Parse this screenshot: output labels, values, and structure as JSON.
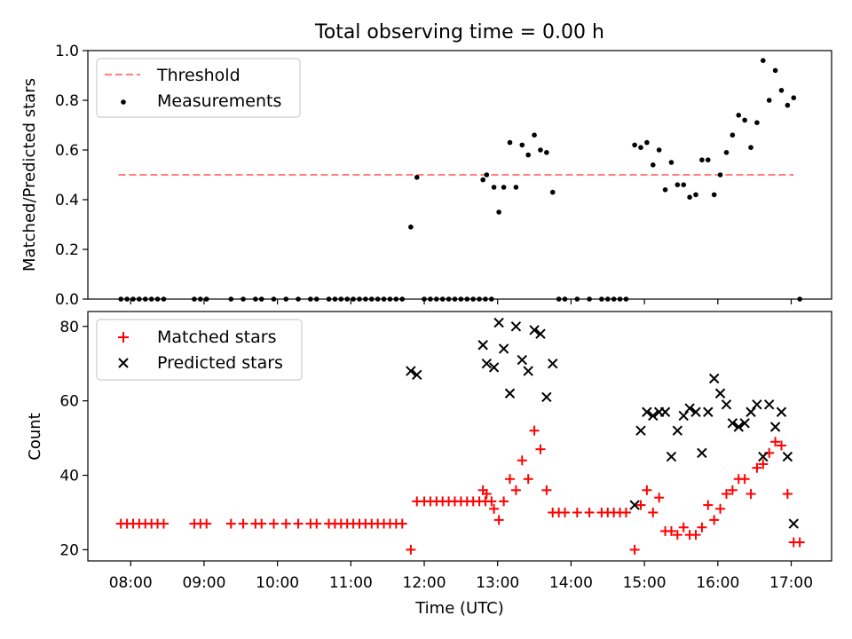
{
  "figure": {
    "title": "Total observing time = 0.00 h",
    "xlabel": "Time (UTC)",
    "xticks": [
      "08:00",
      "09:00",
      "10:00",
      "11:00",
      "12:00",
      "13:00",
      "14:00",
      "15:00",
      "16:00",
      "17:00"
    ]
  },
  "colors": {
    "threshold": "#ff7f7f",
    "measurements": "#000000",
    "matched": "#ff0000",
    "predicted": "#000000"
  },
  "chart_data": [
    {
      "type": "scatter",
      "ylabel": "Matched/Predicted stars",
      "xlim": [
        "07:25",
        "17:33"
      ],
      "ylim": [
        0,
        1
      ],
      "yticks": [
        "0.0",
        "0.2",
        "0.4",
        "0.6",
        "0.8",
        "1.0"
      ],
      "grid": false,
      "legend": {
        "position": "upper-left",
        "entries": [
          {
            "label": "Threshold",
            "marker": "dashed-line"
          },
          {
            "label": "Measurements",
            "marker": "dot"
          }
        ]
      },
      "threshold": {
        "value": 0.5,
        "x_start": "07:50",
        "x_end": "17:02"
      },
      "series": [
        {
          "name": "Measurements",
          "points": [
            [
              "07:52",
              0
            ],
            [
              "07:57",
              0
            ],
            [
              "08:02",
              0
            ],
            [
              "08:07",
              0
            ],
            [
              "08:12",
              0
            ],
            [
              "08:17",
              0
            ],
            [
              "08:22",
              0
            ],
            [
              "08:27",
              0
            ],
            [
              "08:52",
              0
            ],
            [
              "08:57",
              0
            ],
            [
              "09:02",
              0
            ],
            [
              "09:22",
              0
            ],
            [
              "09:32",
              0
            ],
            [
              "09:42",
              0
            ],
            [
              "09:47",
              0
            ],
            [
              "09:57",
              0
            ],
            [
              "10:07",
              0
            ],
            [
              "10:17",
              0
            ],
            [
              "10:27",
              0
            ],
            [
              "10:32",
              0
            ],
            [
              "10:42",
              0
            ],
            [
              "10:47",
              0
            ],
            [
              "10:52",
              0
            ],
            [
              "10:57",
              0
            ],
            [
              "11:02",
              0
            ],
            [
              "11:07",
              0
            ],
            [
              "11:12",
              0
            ],
            [
              "11:17",
              0
            ],
            [
              "11:22",
              0
            ],
            [
              "11:27",
              0
            ],
            [
              "11:32",
              0
            ],
            [
              "11:37",
              0
            ],
            [
              "11:42",
              0
            ],
            [
              "11:49",
              0.29
            ],
            [
              "11:54",
              0.49
            ],
            [
              "12:00",
              0
            ],
            [
              "12:05",
              0
            ],
            [
              "12:10",
              0
            ],
            [
              "12:15",
              0
            ],
            [
              "12:20",
              0
            ],
            [
              "12:25",
              0
            ],
            [
              "12:30",
              0
            ],
            [
              "12:35",
              0
            ],
            [
              "12:40",
              0
            ],
            [
              "12:45",
              0
            ],
            [
              "12:50",
              0
            ],
            [
              "12:55",
              0
            ],
            [
              "12:48",
              0.48
            ],
            [
              "12:51",
              0.5
            ],
            [
              "12:57",
              0.45
            ],
            [
              "13:01",
              0.35
            ],
            [
              "13:05",
              0.45
            ],
            [
              "13:10",
              0.63
            ],
            [
              "13:15",
              0.45
            ],
            [
              "13:20",
              0.62
            ],
            [
              "13:25",
              0.58
            ],
            [
              "13:30",
              0.66
            ],
            [
              "13:35",
              0.6
            ],
            [
              "13:40",
              0.59
            ],
            [
              "13:45",
              0.43
            ],
            [
              "13:50",
              0
            ],
            [
              "13:55",
              0
            ],
            [
              "14:05",
              0
            ],
            [
              "14:15",
              0
            ],
            [
              "14:25",
              0
            ],
            [
              "14:30",
              0
            ],
            [
              "14:35",
              0
            ],
            [
              "14:40",
              0
            ],
            [
              "14:45",
              0
            ],
            [
              "14:52",
              0.62
            ],
            [
              "14:57",
              0.61
            ],
            [
              "15:02",
              0.63
            ],
            [
              "15:07",
              0.54
            ],
            [
              "15:12",
              0.6
            ],
            [
              "15:17",
              0.44
            ],
            [
              "15:22",
              0.55
            ],
            [
              "15:27",
              0.46
            ],
            [
              "15:32",
              0.46
            ],
            [
              "15:37",
              0.41
            ],
            [
              "15:42",
              0.42
            ],
            [
              "15:47",
              0.56
            ],
            [
              "15:52",
              0.56
            ],
            [
              "15:57",
              0.42
            ],
            [
              "16:02",
              0.5
            ],
            [
              "16:07",
              0.59
            ],
            [
              "16:12",
              0.66
            ],
            [
              "16:17",
              0.74
            ],
            [
              "16:22",
              0.72
            ],
            [
              "16:27",
              0.61
            ],
            [
              "16:32",
              0.71
            ],
            [
              "16:37",
              0.96
            ],
            [
              "16:42",
              0.8
            ],
            [
              "16:47",
              0.92
            ],
            [
              "16:52",
              0.84
            ],
            [
              "16:57",
              0.78
            ],
            [
              "17:02",
              0.81
            ],
            [
              "17:07",
              0
            ]
          ]
        }
      ]
    },
    {
      "type": "scatter",
      "ylabel": "Count",
      "xlim": [
        "07:25",
        "17:33"
      ],
      "ylim": [
        17,
        84
      ],
      "yticks": [
        "20",
        "40",
        "60",
        "80"
      ],
      "grid": false,
      "legend": {
        "position": "upper-left",
        "entries": [
          {
            "label": "Matched stars",
            "marker": "plus"
          },
          {
            "label": "Predicted stars",
            "marker": "cross"
          }
        ]
      },
      "series": [
        {
          "name": "Matched stars",
          "points": [
            [
              "07:52",
              27
            ],
            [
              "07:57",
              27
            ],
            [
              "08:02",
              27
            ],
            [
              "08:07",
              27
            ],
            [
              "08:12",
              27
            ],
            [
              "08:17",
              27
            ],
            [
              "08:22",
              27
            ],
            [
              "08:27",
              27
            ],
            [
              "08:52",
              27
            ],
            [
              "08:57",
              27
            ],
            [
              "09:02",
              27
            ],
            [
              "09:22",
              27
            ],
            [
              "09:32",
              27
            ],
            [
              "09:42",
              27
            ],
            [
              "09:47",
              27
            ],
            [
              "09:57",
              27
            ],
            [
              "10:07",
              27
            ],
            [
              "10:17",
              27
            ],
            [
              "10:27",
              27
            ],
            [
              "10:32",
              27
            ],
            [
              "10:42",
              27
            ],
            [
              "10:47",
              27
            ],
            [
              "10:52",
              27
            ],
            [
              "10:57",
              27
            ],
            [
              "11:02",
              27
            ],
            [
              "11:07",
              27
            ],
            [
              "11:12",
              27
            ],
            [
              "11:17",
              27
            ],
            [
              "11:22",
              27
            ],
            [
              "11:27",
              27
            ],
            [
              "11:32",
              27
            ],
            [
              "11:37",
              27
            ],
            [
              "11:42",
              27
            ],
            [
              "11:49",
              20
            ],
            [
              "11:54",
              33
            ],
            [
              "12:00",
              33
            ],
            [
              "12:05",
              33
            ],
            [
              "12:10",
              33
            ],
            [
              "12:15",
              33
            ],
            [
              "12:20",
              33
            ],
            [
              "12:25",
              33
            ],
            [
              "12:30",
              33
            ],
            [
              "12:35",
              33
            ],
            [
              "12:40",
              33
            ],
            [
              "12:45",
              33
            ],
            [
              "12:50",
              33
            ],
            [
              "12:55",
              33
            ],
            [
              "12:48",
              36
            ],
            [
              "12:51",
              35
            ],
            [
              "12:57",
              31
            ],
            [
              "13:01",
              28
            ],
            [
              "13:05",
              33
            ],
            [
              "13:10",
              39
            ],
            [
              "13:15",
              36
            ],
            [
              "13:20",
              44
            ],
            [
              "13:25",
              39
            ],
            [
              "13:30",
              52
            ],
            [
              "13:35",
              47
            ],
            [
              "13:40",
              36
            ],
            [
              "13:45",
              30
            ],
            [
              "13:50",
              30
            ],
            [
              "13:55",
              30
            ],
            [
              "14:05",
              30
            ],
            [
              "14:15",
              30
            ],
            [
              "14:25",
              30
            ],
            [
              "14:30",
              30
            ],
            [
              "14:35",
              30
            ],
            [
              "14:40",
              30
            ],
            [
              "14:45",
              30
            ],
            [
              "14:52",
              20
            ],
            [
              "14:57",
              32
            ],
            [
              "15:02",
              36
            ],
            [
              "15:07",
              30
            ],
            [
              "15:12",
              34
            ],
            [
              "15:17",
              25
            ],
            [
              "15:22",
              25
            ],
            [
              "15:27",
              24
            ],
            [
              "15:32",
              26
            ],
            [
              "15:37",
              24
            ],
            [
              "15:42",
              24
            ],
            [
              "15:47",
              26
            ],
            [
              "15:52",
              32
            ],
            [
              "15:57",
              28
            ],
            [
              "16:02",
              31
            ],
            [
              "16:07",
              35
            ],
            [
              "16:12",
              36
            ],
            [
              "16:17",
              39
            ],
            [
              "16:22",
              39
            ],
            [
              "16:27",
              35
            ],
            [
              "16:32",
              42
            ],
            [
              "16:37",
              43
            ],
            [
              "16:42",
              46
            ],
            [
              "16:47",
              49
            ],
            [
              "16:52",
              48
            ],
            [
              "16:57",
              35
            ],
            [
              "17:02",
              22
            ],
            [
              "17:07",
              22
            ]
          ]
        },
        {
          "name": "Predicted stars",
          "points": [
            [
              "11:49",
              68
            ],
            [
              "11:54",
              67
            ],
            [
              "12:48",
              75
            ],
            [
              "12:51",
              70
            ],
            [
              "12:57",
              69
            ],
            [
              "13:01",
              81
            ],
            [
              "13:05",
              74
            ],
            [
              "13:10",
              62
            ],
            [
              "13:15",
              80
            ],
            [
              "13:20",
              71
            ],
            [
              "13:25",
              68
            ],
            [
              "13:30",
              79
            ],
            [
              "13:35",
              78
            ],
            [
              "13:40",
              61
            ],
            [
              "13:45",
              70
            ],
            [
              "14:52",
              32
            ],
            [
              "14:57",
              52
            ],
            [
              "15:02",
              57
            ],
            [
              "15:07",
              56
            ],
            [
              "15:12",
              57
            ],
            [
              "15:17",
              57
            ],
            [
              "15:22",
              45
            ],
            [
              "15:27",
              52
            ],
            [
              "15:32",
              56
            ],
            [
              "15:37",
              58
            ],
            [
              "15:42",
              57
            ],
            [
              "15:47",
              46
            ],
            [
              "15:52",
              57
            ],
            [
              "15:57",
              66
            ],
            [
              "16:02",
              62
            ],
            [
              "16:07",
              59
            ],
            [
              "16:12",
              54
            ],
            [
              "16:17",
              53
            ],
            [
              "16:22",
              54
            ],
            [
              "16:27",
              57
            ],
            [
              "16:32",
              59
            ],
            [
              "16:37",
              45
            ],
            [
              "16:42",
              59
            ],
            [
              "16:47",
              53
            ],
            [
              "16:52",
              57
            ],
            [
              "16:57",
              45
            ],
            [
              "17:02",
              27
            ]
          ]
        }
      ]
    }
  ]
}
